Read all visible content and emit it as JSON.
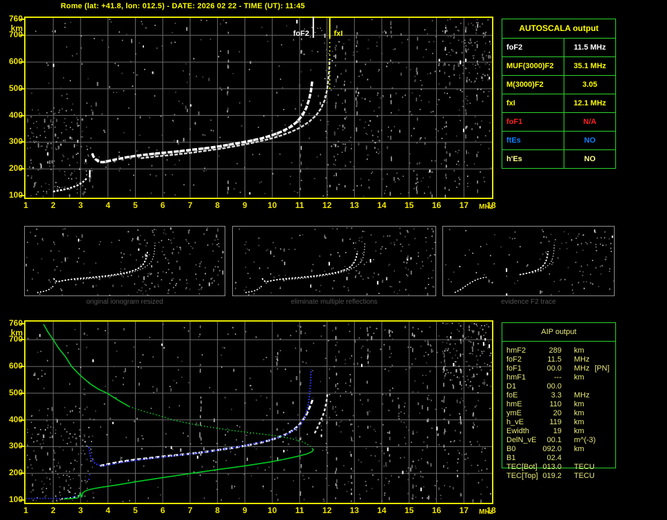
{
  "title": "Rome (lat: +41.8, lon: 012.5) - DATE: 2026 02 22 - TIME (UT): 11:45",
  "colors": {
    "background": "#000000",
    "plot_border": "#e8e800",
    "grid": "#6e6e6e",
    "axis_text": "#f0e400",
    "table_border": "#2ed52e",
    "trace_white": "#ffffff",
    "trace_gray": "#d8d8d8",
    "trace_blue": "#2830e0",
    "profile_green": "#00cc22",
    "caption_gray": "#565656"
  },
  "autoscala": {
    "header": "AUTOSCALA output",
    "rows": [
      {
        "label": "foF2",
        "value": "11.5 MHz",
        "color": "#ffffff"
      },
      {
        "label": "MUF(3000)F2",
        "value": "35.1 MHz",
        "color": "#ffff00"
      },
      {
        "label": "M(3000)F2",
        "value": "3.05",
        "color": "#ffff00"
      },
      {
        "label": "fxI",
        "value": "12.1 MHz",
        "color": "#ffff00"
      },
      {
        "label": "foF1",
        "value": "N/A",
        "color": "#ff2020"
      },
      {
        "label": "ftEs",
        "value": "NO",
        "color": "#0f82ff"
      },
      {
        "label": "h'Es",
        "value": "NO",
        "color": "#ffff8a"
      }
    ]
  },
  "aip": {
    "header": "AIP output",
    "rows": [
      {
        "label": "hmF2",
        "value": "289",
        "unit": "km",
        "extra": ""
      },
      {
        "label": "foF2",
        "value": "11.5",
        "unit": "MHz",
        "extra": ""
      },
      {
        "label": "foF1",
        "value": "00.0",
        "unit": "MHz",
        "extra": "[PN]"
      },
      {
        "label": "hmF1",
        "value": "---",
        "unit": "km",
        "extra": ""
      },
      {
        "label": "D1",
        "value": "00.0",
        "unit": "",
        "extra": ""
      },
      {
        "label": "foE",
        "value": "3.3",
        "unit": "MHz",
        "extra": ""
      },
      {
        "label": "hmE",
        "value": "110",
        "unit": "km",
        "extra": ""
      },
      {
        "label": "ymE",
        "value": "20",
        "unit": "km",
        "extra": ""
      },
      {
        "label": "h_vE",
        "value": "119",
        "unit": "km",
        "extra": ""
      },
      {
        "label": "Ewidth",
        "value": "19",
        "unit": "km",
        "extra": ""
      },
      {
        "label": "DelN_vE",
        "value": "00.1",
        "unit": "m^(-3)",
        "extra": ""
      },
      {
        "label": "B0",
        "value": "092.0",
        "unit": "km",
        "extra": ""
      },
      {
        "label": "B1",
        "value": "02.4",
        "unit": "",
        "extra": ""
      },
      {
        "label": "TEC[Bot]",
        "value": "013.0",
        "unit": "TECU",
        "extra": ""
      },
      {
        "label": "TEC[Top]",
        "value": "019.2",
        "unit": "TECU",
        "extra": ""
      }
    ]
  },
  "thumbnails": [
    {
      "caption": "original ionogram resized"
    },
    {
      "caption": "eliminate multiple reflections"
    },
    {
      "caption": "evidence F2 trace"
    }
  ],
  "chart_data": [
    {
      "type": "scatter",
      "title": "top ionogram",
      "xlabel": "MHz",
      "ylabel": "km",
      "xlim": [
        1,
        18
      ],
      "ylim": [
        100,
        760
      ],
      "x_ticks": [
        1,
        2,
        3,
        4,
        5,
        6,
        7,
        8,
        9,
        10,
        11,
        12,
        13,
        14,
        15,
        16,
        17,
        18
      ],
      "y_ticks": [
        760,
        700,
        600,
        500,
        400,
        300,
        200,
        100
      ],
      "grid": true,
      "markers": [
        {
          "label": "foF2",
          "x": 11.5,
          "color": "#ffffff",
          "side": "left"
        },
        {
          "label": "fxI",
          "x": 12.1,
          "color": "#ffff00",
          "side": "right"
        }
      ],
      "series": [
        {
          "name": "E-trace",
          "color": "#ffffff",
          "width": 2.5,
          "dash": "3 2",
          "points": [
            [
              2.0,
              115
            ],
            [
              2.2,
              119
            ],
            [
              2.45,
              124
            ],
            [
              2.7,
              131
            ],
            [
              2.9,
              139
            ],
            [
              3.05,
              148
            ],
            [
              3.15,
              157
            ],
            [
              3.22,
              164
            ]
          ]
        },
        {
          "name": "E-gap-dash",
          "color": "#ffffff",
          "width": 2.5,
          "dash": "",
          "points": [
            [
              3.33,
              168
            ],
            [
              3.34,
              196
            ]
          ]
        },
        {
          "name": "F-trace-shadow",
          "color": "#888888",
          "width": 5,
          "dash": "3 9",
          "points": [
            [
              3.6,
              232
            ],
            [
              4.0,
              226
            ],
            [
              4.7,
              241
            ],
            [
              5.6,
              253
            ],
            [
              6.6,
              263
            ],
            [
              7.6,
              275
            ],
            [
              8.6,
              291
            ],
            [
              9.6,
              311
            ],
            [
              10.35,
              337
            ],
            [
              10.9,
              373
            ],
            [
              11.25,
              427
            ]
          ]
        },
        {
          "name": "F-trace-ordinary",
          "color": "#ffffff",
          "width": 3.5,
          "dash": "7 2",
          "points": [
            [
              3.42,
              258
            ],
            [
              3.47,
              246
            ],
            [
              3.55,
              236
            ],
            [
              3.68,
              226
            ],
            [
              3.82,
              225
            ],
            [
              4.0,
              229
            ],
            [
              4.3,
              236
            ],
            [
              4.7,
              244
            ],
            [
              5.1,
              250
            ],
            [
              5.6,
              256
            ],
            [
              6.1,
              261
            ],
            [
              6.6,
              266
            ],
            [
              7.1,
              272
            ],
            [
              7.6,
              278
            ],
            [
              8.1,
              285
            ],
            [
              8.6,
              294
            ],
            [
              9.1,
              303
            ],
            [
              9.6,
              314
            ],
            [
              10.0,
              326
            ],
            [
              10.35,
              340
            ],
            [
              10.65,
              356
            ],
            [
              10.9,
              376
            ],
            [
              11.1,
              400
            ],
            [
              11.25,
              430
            ],
            [
              11.35,
              462
            ],
            [
              11.42,
              495
            ],
            [
              11.46,
              528
            ]
          ]
        },
        {
          "name": "F-trace-extraordinary",
          "color": "#d8d8d8",
          "width": 2.5,
          "dash": "5 2",
          "points": [
            [
              5.2,
              240
            ],
            [
              5.8,
              247
            ],
            [
              6.4,
              253
            ],
            [
              7.0,
              260
            ],
            [
              7.6,
              268
            ],
            [
              8.2,
              277
            ],
            [
              8.8,
              288
            ],
            [
              9.4,
              300
            ],
            [
              9.9,
              312
            ],
            [
              10.3,
              324
            ],
            [
              10.7,
              339
            ],
            [
              11.05,
              356
            ],
            [
              11.35,
              377
            ],
            [
              11.6,
              400
            ],
            [
              11.78,
              426
            ],
            [
              11.92,
              458
            ],
            [
              12.0,
              495
            ],
            [
              12.05,
              535
            ],
            [
              12.08,
              578
            ],
            [
              12.09,
              612
            ]
          ]
        }
      ]
    },
    {
      "type": "scatter",
      "title": "bottom ionogram with AIP profile",
      "xlabel": "MHz",
      "ylabel": "km",
      "xlim": [
        1,
        18
      ],
      "ylim": [
        100,
        760
      ],
      "x_ticks": [
        1,
        2,
        3,
        4,
        5,
        6,
        7,
        8,
        9,
        10,
        11,
        12,
        13,
        14,
        15,
        16,
        17,
        18
      ],
      "y_ticks": [
        760,
        700,
        600,
        500,
        400,
        300,
        200,
        100
      ],
      "grid": true,
      "markers": [],
      "series": [
        {
          "name": "E-trace-model-blue",
          "color": "#2830e0",
          "width": 2,
          "dash": "1.5 2.5",
          "points": [
            [
              1.0,
              106
            ],
            [
              2.35,
              106
            ],
            [
              2.6,
              109
            ],
            [
              2.85,
              114
            ],
            [
              3.0,
              120
            ],
            [
              3.08,
              126
            ]
          ]
        },
        {
          "name": "E-trace-white",
          "color": "#ffffff",
          "width": 2,
          "dash": "2 4",
          "points": [
            [
              2.3,
              104
            ],
            [
              2.6,
              107
            ],
            [
              2.85,
              112
            ],
            [
              3.0,
              118
            ]
          ]
        },
        {
          "name": "F-cusp-dots-blue",
          "color": "#2830e0",
          "width": 2,
          "dash": "2 5",
          "points": [
            [
              3.3,
              175
            ],
            [
              3.36,
              210
            ]
          ]
        },
        {
          "name": "F-trace-observed-white",
          "color": "#ffffff",
          "width": 3,
          "dash": "6 3",
          "points": [
            [
              3.72,
              228
            ],
            [
              4.0,
              234
            ],
            [
              4.5,
              244
            ],
            [
              5.0,
              251
            ],
            [
              5.6,
              258
            ],
            [
              6.2,
              265
            ],
            [
              6.8,
              271
            ],
            [
              7.4,
              278
            ],
            [
              8.0,
              287
            ],
            [
              8.6,
              296
            ],
            [
              9.2,
              307
            ],
            [
              9.7,
              318
            ],
            [
              10.1,
              330
            ],
            [
              10.5,
              346
            ],
            [
              10.8,
              364
            ],
            [
              11.05,
              388
            ],
            [
              11.25,
              420
            ],
            [
              11.4,
              455
            ],
            [
              11.5,
              482
            ]
          ]
        },
        {
          "name": "F-trace-observed-x-white",
          "color": "#e8e8e8",
          "width": 2.5,
          "dash": "4 3",
          "points": [
            [
              11.55,
              350
            ],
            [
              11.75,
              392
            ],
            [
              11.9,
              430
            ],
            [
              11.98,
              468
            ],
            [
              12.02,
              503
            ]
          ]
        },
        {
          "name": "F-trace-model-blue",
          "color": "#2830e0",
          "width": 2.2,
          "dash": "2 2",
          "points": [
            [
              3.3,
              298
            ],
            [
              3.34,
              272
            ],
            [
              3.4,
              252
            ],
            [
              3.5,
              240
            ],
            [
              3.62,
              232
            ],
            [
              3.78,
              227
            ],
            [
              4.0,
              231
            ],
            [
              4.4,
              239
            ],
            [
              4.9,
              247
            ],
            [
              5.5,
              255
            ],
            [
              6.1,
              262
            ],
            [
              6.7,
              269
            ],
            [
              7.3,
              276
            ],
            [
              7.9,
              285
            ],
            [
              8.5,
              295
            ],
            [
              9.1,
              306
            ],
            [
              9.6,
              317
            ],
            [
              10.1,
              330
            ],
            [
              10.5,
              345
            ],
            [
              10.8,
              362
            ],
            [
              11.05,
              384
            ],
            [
              11.2,
              412
            ],
            [
              11.3,
              448
            ],
            [
              11.36,
              490
            ],
            [
              11.4,
              540
            ],
            [
              11.42,
              588
            ]
          ]
        },
        {
          "name": "Ne-profile-topside-solid",
          "color": "#00cc22",
          "width": 1.6,
          "dash": "",
          "points": [
            [
              1.65,
              758
            ],
            [
              1.8,
              730
            ],
            [
              2.0,
              700
            ],
            [
              2.2,
              668
            ],
            [
              2.45,
              636
            ],
            [
              2.67,
              600
            ],
            [
              3.0,
              565
            ],
            [
              3.35,
              535
            ],
            [
              3.65,
              515
            ],
            [
              3.97,
              500
            ],
            [
              4.4,
              472
            ],
            [
              4.77,
              450
            ]
          ]
        },
        {
          "name": "Ne-profile-topside-dotted",
          "color": "#00cc22",
          "width": 1.6,
          "dash": "1.5 3",
          "points": [
            [
              4.77,
              450
            ],
            [
              5.3,
              432
            ],
            [
              5.9,
              415
            ],
            [
              6.36,
              400
            ],
            [
              7.0,
              386
            ],
            [
              7.7,
              373
            ],
            [
              8.5,
              361
            ],
            [
              9.3,
              351
            ],
            [
              10.1,
              341
            ],
            [
              10.7,
              330
            ],
            [
              11.1,
              318
            ],
            [
              11.35,
              305
            ],
            [
              11.45,
              294
            ]
          ]
        },
        {
          "name": "Ne-profile-bottomside-solid",
          "color": "#00cc22",
          "width": 1.6,
          "dash": "",
          "points": [
            [
              11.45,
              294
            ],
            [
              11.5,
              288
            ],
            [
              11.45,
              281
            ],
            [
              11.25,
              272
            ],
            [
              10.9,
              263
            ],
            [
              10.4,
              252
            ],
            [
              9.9,
              242
            ],
            [
              9.0,
              228
            ],
            [
              8.0,
              214
            ],
            [
              7.0,
              199
            ],
            [
              6.0,
              184
            ],
            [
              5.0,
              168
            ],
            [
              4.3,
              156
            ],
            [
              3.7,
              147
            ],
            [
              3.35,
              140
            ],
            [
              3.18,
              134
            ],
            [
              3.08,
              127
            ],
            [
              3.04,
              110
            ],
            [
              3.0,
              125
            ],
            [
              2.9,
              108
            ],
            [
              2.6,
              105
            ],
            [
              2.38,
              104
            ]
          ]
        }
      ]
    }
  ]
}
